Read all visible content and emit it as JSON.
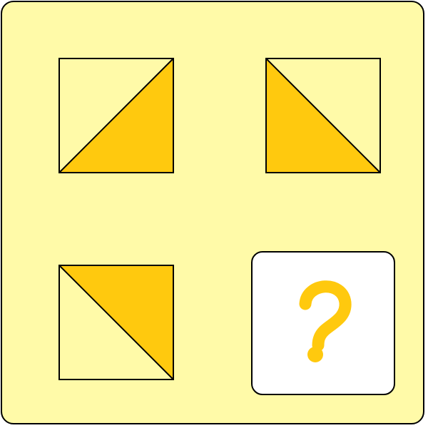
{
  "puzzle": {
    "colors": {
      "background": "#fffaa8",
      "tile_light": "#fffaa8",
      "tile_fill": "#ffc90e",
      "outline": "#000000",
      "answer_bg": "#ffffff",
      "question_mark": "#ffc90e"
    },
    "tiles": [
      {
        "id": "tile-1",
        "diagonal": "bottom-left-to-top-right",
        "shaded": "bottom-right"
      },
      {
        "id": "tile-2",
        "diagonal": "top-left-to-bottom-right",
        "shaded": "bottom-left"
      },
      {
        "id": "tile-3",
        "diagonal": "top-left-to-bottom-right",
        "shaded": "top-right"
      }
    ],
    "answer_slot": {
      "icon": "question-mark-icon",
      "symbol": "?"
    }
  }
}
